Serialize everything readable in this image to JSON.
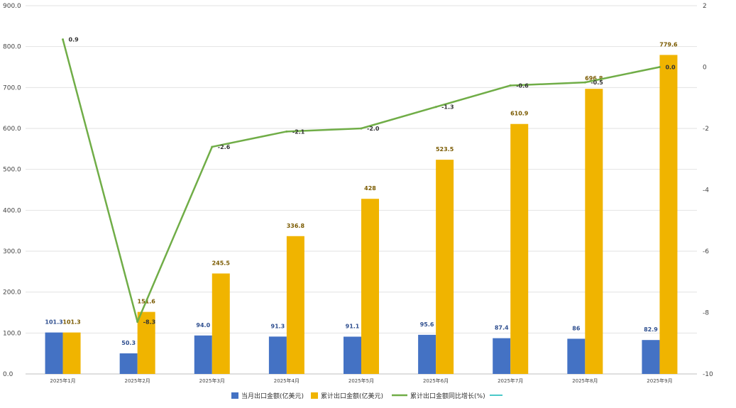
{
  "chart_data": {
    "type": "bar",
    "categories": [
      "2025年1月",
      "2025年2月",
      "2025年3月",
      "2025年4月",
      "2025年5月",
      "2025年6月",
      "2025年7月",
      "2025年8月",
      "2025年9月"
    ],
    "series": [
      {
        "name": "当月出口金额(亿美元)",
        "type": "bar",
        "axis": "left",
        "color": "#4472c4",
        "values": [
          101.3,
          50.3,
          94.0,
          91.3,
          91.1,
          95.6,
          87.4,
          86,
          82.9
        ],
        "labels": [
          "101.3",
          "50.3",
          "94.0",
          "91.3",
          "91.1",
          "95.6",
          "87.4",
          "86",
          "82.9"
        ]
      },
      {
        "name": "累计出口金额(亿美元)",
        "type": "bar",
        "axis": "left",
        "color": "#f0b400",
        "values": [
          101.3,
          151.6,
          245.5,
          336.8,
          428,
          523.5,
          610.9,
          696.8,
          779.6
        ],
        "labels": [
          "101.3",
          "151.6",
          "245.5",
          "336.8",
          "428",
          "523.5",
          "610.9",
          "696.8",
          "779.6"
        ]
      },
      {
        "name": "累计出口金额同比增长(%)",
        "type": "line",
        "axis": "right",
        "color": "#70ad47",
        "values": [
          0.9,
          -8.3,
          -2.6,
          -2.1,
          -2.0,
          -1.3,
          -0.6,
          -0.5,
          0.0
        ],
        "labels": [
          "0.9",
          "-8.3",
          "-2.6",
          "-2.1",
          "-2.0",
          "-1.3",
          "-0.6",
          "-0.5",
          "0.0"
        ]
      }
    ],
    "extra_legend": {
      "name": "",
      "color": "#4bc8c8"
    },
    "left_axis": {
      "ylim": [
        0,
        900
      ],
      "ticks": [
        "0.0",
        "100.0",
        "200.0",
        "300.0",
        "400.0",
        "500.0",
        "600.0",
        "700.0",
        "800.0",
        "900.0"
      ]
    },
    "right_axis": {
      "ylim": [
        -10,
        2
      ],
      "ticks": [
        "-10",
        "-8",
        "-6",
        "-4",
        "-2",
        "0",
        "2"
      ]
    },
    "title": "",
    "xlabel": "",
    "ylabel": "",
    "grid": true,
    "legend_position": "bottom"
  }
}
